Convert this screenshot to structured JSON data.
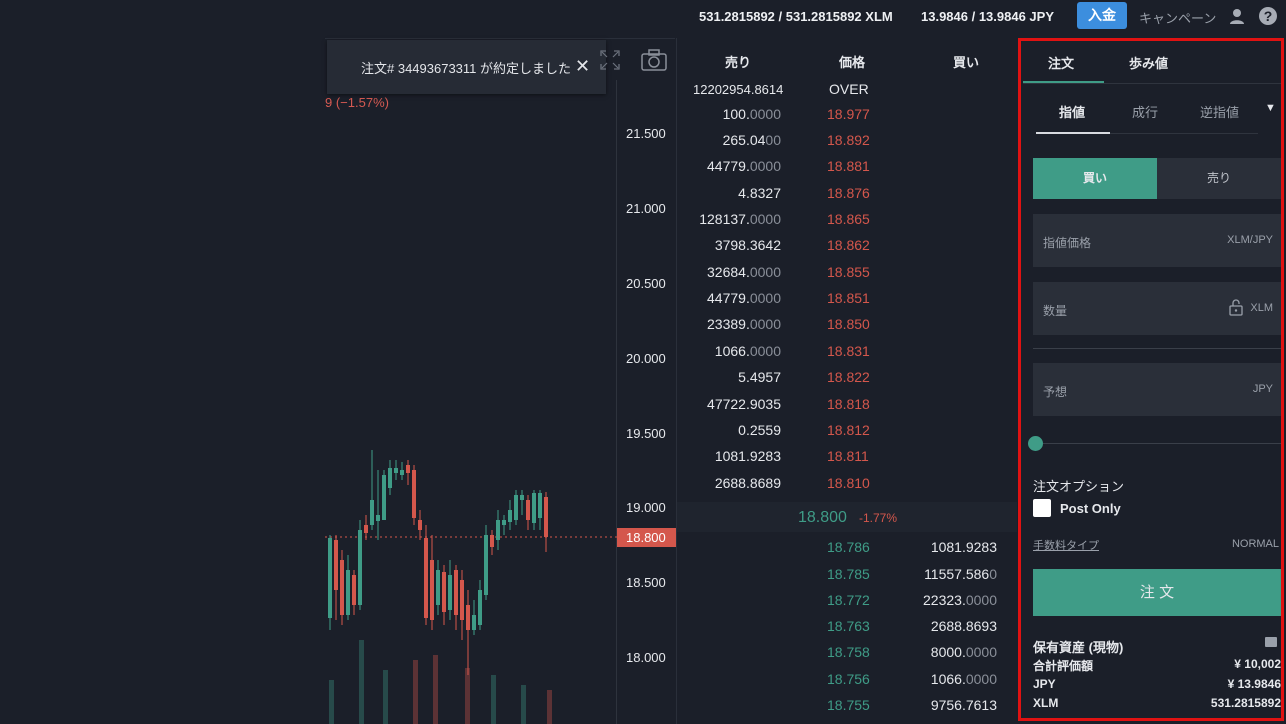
{
  "topbar": {
    "xlm_balance": "531.2815892 / 531.2815892 XLM",
    "jpy_balance": "13.9846 / 13.9846 JPY",
    "deposit_label": "入金",
    "campaign_label": "キャンペーン",
    "help_label": "?"
  },
  "chart": {
    "toast_text": "注文# 34493673311 が約定しました",
    "toast_close": "✕",
    "change_text": "9 (−1.57%)",
    "ticks": [
      "21.500",
      "21.000",
      "20.500",
      "20.000",
      "19.500",
      "19.000",
      "18.500",
      "18.000"
    ],
    "current_price_tag": "18.800",
    "colors": {
      "up": "#3f9c87",
      "down": "#d4574c"
    }
  },
  "orderbook": {
    "headers": {
      "sell": "売り",
      "price": "価格",
      "buy": "買い"
    },
    "first_amount": "12202954.8614",
    "over_label": "OVER",
    "asks": [
      {
        "amt": "100.",
        "dim": "0000",
        "price": "18.977"
      },
      {
        "amt": "265.04",
        "dim": "00",
        "price": "18.892"
      },
      {
        "amt": "44779.",
        "dim": "0000",
        "price": "18.881"
      },
      {
        "amt": "4.8327",
        "dim": "",
        "price": "18.876"
      },
      {
        "amt": "128137.",
        "dim": "0000",
        "price": "18.865"
      },
      {
        "amt": "3798.3642",
        "dim": "",
        "price": "18.862"
      },
      {
        "amt": "32684.",
        "dim": "0000",
        "price": "18.855"
      },
      {
        "amt": "44779.",
        "dim": "0000",
        "price": "18.851"
      },
      {
        "amt": "23389.",
        "dim": "0000",
        "price": "18.850"
      },
      {
        "amt": "1066.",
        "dim": "0000",
        "price": "18.831"
      },
      {
        "amt": "5.4957",
        "dim": "",
        "price": "18.822"
      },
      {
        "amt": "47722.9035",
        "dim": "",
        "price": "18.818"
      },
      {
        "amt": "0.2559",
        "dim": "",
        "price": "18.812"
      },
      {
        "amt": "1081.9283",
        "dim": "",
        "price": "18.811"
      },
      {
        "amt": "2688.8689",
        "dim": "",
        "price": "18.810"
      }
    ],
    "mid_price": "18.800",
    "mid_change": "-1.77%",
    "bids": [
      {
        "price": "18.786",
        "amt": "1081.9283",
        "dim": ""
      },
      {
        "price": "18.785",
        "amt": "11557.586",
        "dim": "0"
      },
      {
        "price": "18.772",
        "amt": "22323.",
        "dim": "0000"
      },
      {
        "price": "18.763",
        "amt": "2688.8693",
        "dim": ""
      },
      {
        "price": "18.758",
        "amt": "8000.",
        "dim": "0000"
      },
      {
        "price": "18.756",
        "amt": "1066.",
        "dim": "0000"
      },
      {
        "price": "18.755",
        "amt": "9756.7613",
        "dim": ""
      }
    ]
  },
  "panel": {
    "tabs": [
      "注文",
      "歩み値"
    ],
    "subtabs": [
      "指値",
      "成行",
      "逆指値"
    ],
    "caret": "▼",
    "buy_label": "買い",
    "sell_label": "売り",
    "limit_price_placeholder": "指値価格",
    "limit_price_unit": "XLM/JPY",
    "quantity_placeholder": "数量",
    "quantity_unit": "XLM",
    "estimate_placeholder": "予想",
    "estimate_unit": "JPY",
    "slider_level": 0,
    "order_options_label": "注文オプション",
    "post_only_label": "Post Only",
    "fee_type_label": "手数料タイプ",
    "fee_type_value": "NORMAL",
    "order_button": "注 文",
    "assets_title": "保有資産 (現物)",
    "assets": [
      {
        "label": "合計評価額",
        "value": "¥ 10,002"
      },
      {
        "label": "JPY",
        "value": "¥ 13.9846"
      },
      {
        "label": "XLM",
        "value": "531.2815892"
      }
    ]
  }
}
